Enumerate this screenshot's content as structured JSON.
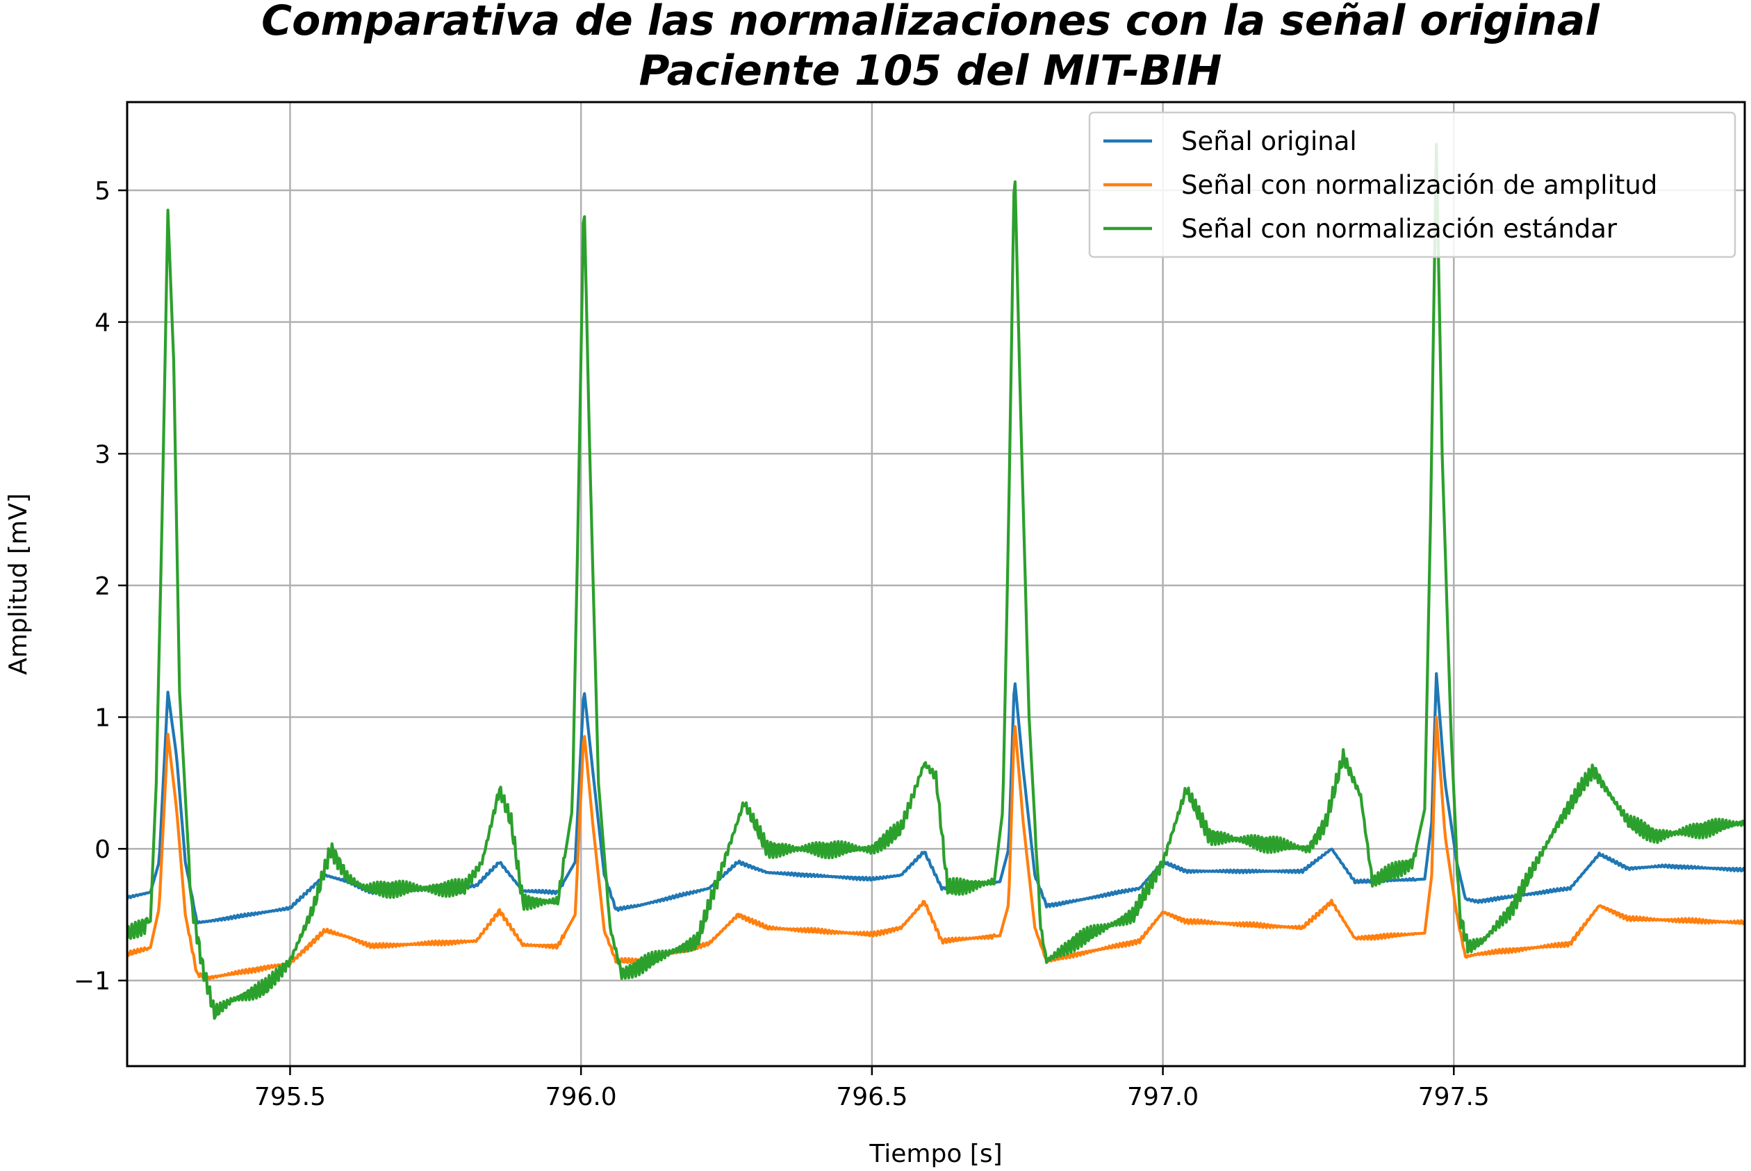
{
  "chart_data": {
    "type": "line",
    "title": "Comparativa de las normalizaciones con la señal original",
    "subtitle": "Paciente 105 del MIT-BIH",
    "xlabel": "Tiempo [s]",
    "ylabel": "Amplitud [mV]",
    "xlim": [
      795.22,
      798.0
    ],
    "ylim": [
      -1.65,
      5.67
    ],
    "xticks": [
      795.5,
      796.0,
      796.5,
      797.0,
      797.5
    ],
    "xtick_labels": [
      "795.5",
      "796.0",
      "796.5",
      "797.0",
      "797.5"
    ],
    "yticks": [
      -1,
      0,
      1,
      2,
      3,
      4,
      5
    ],
    "ytick_labels": [
      "−1",
      "0",
      "1",
      "2",
      "3",
      "4",
      "5"
    ],
    "grid": true,
    "legend_position": "top-right",
    "beats": [
      795.29,
      796.005,
      796.745,
      797.47
    ],
    "series": [
      {
        "name": "Señal original",
        "color": "#1f77b4",
        "x": [
          795.22,
          795.26,
          795.275,
          795.29,
          795.305,
          795.32,
          795.34,
          795.36,
          795.5,
          795.56,
          795.6,
          795.64,
          795.82,
          795.86,
          795.9,
          795.96,
          795.99,
          796.005,
          796.02,
          796.04,
          796.06,
          796.1,
          796.22,
          796.27,
          796.32,
          796.5,
          796.55,
          796.59,
          796.62,
          796.72,
          796.735,
          796.745,
          796.76,
          796.78,
          796.8,
          796.82,
          796.96,
          797.0,
          797.04,
          797.24,
          797.29,
          797.33,
          797.45,
          797.462,
          797.47,
          797.485,
          797.505,
          797.52,
          797.54,
          797.7,
          797.75,
          797.8,
          797.86,
          798.0
        ],
        "y": [
          -0.37,
          -0.33,
          -0.1,
          1.19,
          0.7,
          -0.1,
          -0.56,
          -0.55,
          -0.45,
          -0.2,
          -0.25,
          -0.33,
          -0.28,
          -0.1,
          -0.32,
          -0.33,
          -0.1,
          1.22,
          0.6,
          -0.2,
          -0.46,
          -0.43,
          -0.3,
          -0.1,
          -0.18,
          -0.23,
          -0.2,
          -0.02,
          -0.3,
          -0.25,
          0.0,
          1.3,
          0.6,
          -0.2,
          -0.43,
          -0.42,
          -0.3,
          -0.1,
          -0.17,
          -0.17,
          0.0,
          -0.25,
          -0.23,
          0.2,
          1.33,
          0.5,
          -0.1,
          -0.38,
          -0.4,
          -0.3,
          -0.04,
          -0.15,
          -0.13,
          -0.16
        ]
      },
      {
        "name": "Señal con normalización de amplitud",
        "color": "#ff7f0e",
        "x": [
          795.22,
          795.26,
          795.275,
          795.29,
          795.305,
          795.32,
          795.34,
          795.36,
          795.5,
          795.56,
          795.6,
          795.64,
          795.82,
          795.86,
          795.9,
          795.96,
          795.99,
          796.005,
          796.02,
          796.04,
          796.06,
          796.1,
          796.22,
          796.27,
          796.32,
          796.5,
          796.55,
          796.59,
          796.62,
          796.72,
          796.735,
          796.745,
          796.76,
          796.78,
          796.8,
          796.82,
          796.96,
          797.0,
          797.04,
          797.24,
          797.29,
          797.33,
          797.45,
          797.462,
          797.47,
          797.485,
          797.505,
          797.52,
          797.54,
          797.7,
          797.75,
          797.8,
          797.86,
          798.0
        ],
        "y": [
          -0.8,
          -0.75,
          -0.45,
          0.87,
          0.3,
          -0.5,
          -0.95,
          -0.98,
          -0.87,
          -0.62,
          -0.67,
          -0.74,
          -0.7,
          -0.47,
          -0.73,
          -0.74,
          -0.5,
          0.9,
          0.2,
          -0.62,
          -0.85,
          -0.85,
          -0.72,
          -0.5,
          -0.6,
          -0.65,
          -0.6,
          -0.4,
          -0.7,
          -0.66,
          -0.42,
          0.98,
          0.2,
          -0.6,
          -0.85,
          -0.83,
          -0.7,
          -0.48,
          -0.55,
          -0.6,
          -0.4,
          -0.68,
          -0.64,
          -0.2,
          1.0,
          0.1,
          -0.5,
          -0.82,
          -0.8,
          -0.72,
          -0.43,
          -0.53,
          -0.54,
          -0.56
        ]
      },
      {
        "name": "Señal con normalización estándar",
        "color": "#2ca02c",
        "x": [
          795.22,
          795.26,
          795.27,
          795.28,
          795.29,
          795.3,
          795.31,
          795.33,
          795.35,
          795.37,
          795.4,
          795.46,
          795.5,
          795.54,
          795.57,
          795.6,
          795.63,
          795.8,
          795.83,
          795.86,
          795.88,
          795.9,
          795.96,
          795.985,
          795.995,
          796.005,
          796.015,
          796.03,
          796.05,
          796.07,
          796.12,
          796.2,
          796.23,
          796.28,
          796.32,
          796.5,
          796.55,
          796.59,
          796.61,
          796.63,
          796.71,
          796.725,
          796.735,
          796.745,
          796.755,
          796.77,
          796.79,
          796.8,
          796.85,
          796.95,
          797.0,
          797.04,
          797.08,
          797.25,
          797.28,
          797.31,
          797.34,
          797.36,
          797.43,
          797.45,
          797.46,
          797.47,
          797.48,
          797.495,
          797.51,
          797.525,
          797.55,
          797.6,
          797.68,
          797.74,
          797.77,
          797.8,
          797.85,
          798.0
        ],
        "y": [
          -0.65,
          -0.55,
          0.5,
          2.5,
          4.85,
          3.7,
          1.2,
          -0.4,
          -0.9,
          -1.25,
          -1.15,
          -1.05,
          -0.85,
          -0.45,
          0.0,
          -0.22,
          -0.3,
          -0.3,
          -0.1,
          0.45,
          0.2,
          -0.4,
          -0.4,
          0.3,
          2.5,
          5.0,
          3.0,
          0.5,
          -0.6,
          -0.95,
          -0.85,
          -0.7,
          -0.3,
          0.35,
          0.0,
          0.0,
          0.15,
          0.65,
          0.55,
          -0.3,
          -0.25,
          0.3,
          2.5,
          5.25,
          3.4,
          1.0,
          -0.6,
          -0.85,
          -0.7,
          -0.5,
          -0.1,
          0.45,
          0.1,
          0.0,
          0.2,
          0.7,
          0.4,
          -0.25,
          -0.1,
          0.3,
          2.5,
          5.35,
          3.0,
          0.9,
          -0.5,
          -0.75,
          -0.7,
          -0.45,
          0.2,
          0.6,
          0.4,
          0.2,
          0.1,
          0.2
        ]
      }
    ]
  }
}
